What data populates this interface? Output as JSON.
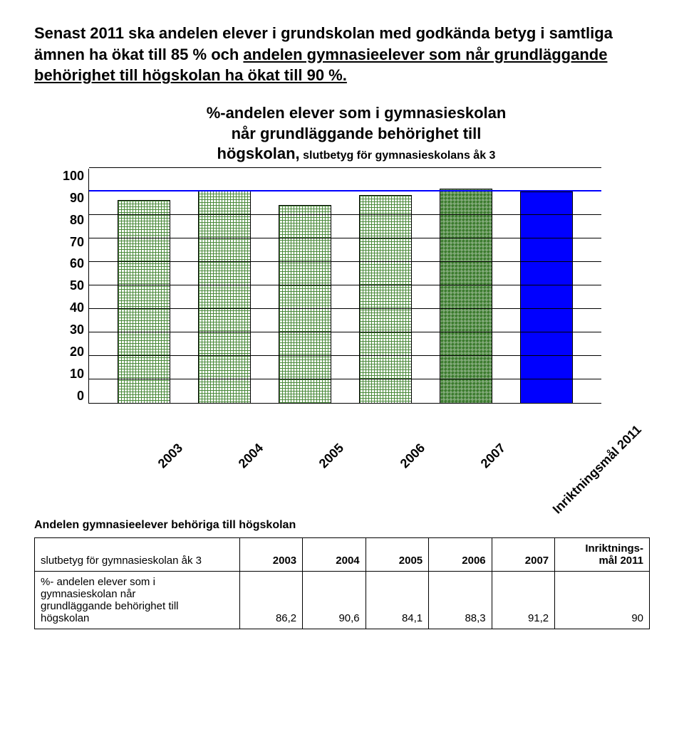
{
  "intro": {
    "pre": "Senast 2011 ska andelen elever i grundskolan med godkända betyg i samtliga ämnen ha ökat till 85 % och ",
    "underlined": "andelen gymnasieelever som når grundläggande behörighet till högskolan ha ökat till 90 %.",
    "post": ""
  },
  "chart": {
    "title_line1": "%-andelen elever som i gymnasieskolan",
    "title_line2": "når grundläggande behörighet till",
    "title_line3_a": "högskolan,",
    "title_line3_b": " slutbetyg för gymnasieskolans åk 3",
    "ylim": [
      0,
      100
    ],
    "ytick_step": 10,
    "goal_value": 90,
    "categories": [
      "2003",
      "2004",
      "2005",
      "2006",
      "2007",
      "Inriktningsmål 2011"
    ],
    "values": [
      86.2,
      90.6,
      84.1,
      88.3,
      91.2,
      90
    ],
    "fill_kinds": [
      "dots",
      "dots",
      "dots",
      "dots",
      "cross",
      "blue"
    ],
    "line_color": "#0000ff",
    "grid_color": "#000000"
  },
  "table": {
    "title": "Andelen gymnasieelever behöriga till högskolan",
    "row_header": "slutbetyg för gymnasieskolan åk 3",
    "cols": [
      "2003",
      "2004",
      "2005",
      "2006",
      "2007"
    ],
    "last_col_l1": "Inriktnings-",
    "last_col_l2": "mål 2011",
    "row_label_l1": "%- andelen elever som i",
    "row_label_l2": "gymnasieskolan når",
    "row_label_l3": "grundläggande behörighet till",
    "row_label_l4": "högskolan",
    "values": [
      "86,2",
      "90,6",
      "84,1",
      "88,3",
      "91,2",
      "90"
    ]
  }
}
